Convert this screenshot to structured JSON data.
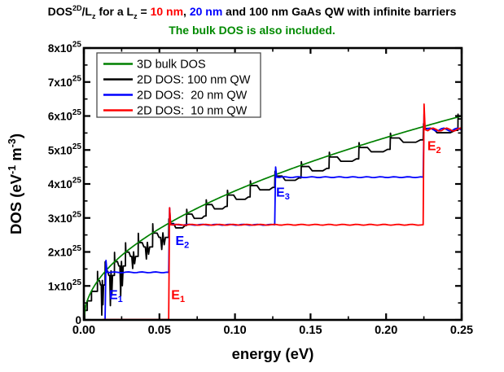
{
  "title": {
    "segments": [
      {
        "text": "DOS"
      },
      {
        "text": "2D",
        "style": "sup"
      },
      {
        "text": "/L"
      },
      {
        "text": "z",
        "style": "sub"
      },
      {
        "text": " for a L"
      },
      {
        "text": "z",
        "style": "sub"
      },
      {
        "text": " = "
      },
      {
        "text": "10 nm",
        "color": "#ff0000"
      },
      {
        "text": ", "
      },
      {
        "text": "20 nm",
        "color": "#0000ff"
      },
      {
        "text": " and 100 nm GaAs QW with infinite barriers"
      }
    ]
  },
  "subtitle": {
    "text": "The bulk DOS is also included.",
    "color": "#008a00"
  },
  "chart_data": {
    "type": "line",
    "xlabel": "energy (eV)",
    "ylabel_segments": [
      {
        "t": "DOS (eV"
      },
      {
        "t": "-1",
        "sup": true
      },
      {
        "t": " m"
      },
      {
        "t": "-3",
        "sup": true
      },
      {
        "t": ")"
      }
    ],
    "xlim": [
      0,
      0.25
    ],
    "ylim": [
      0,
      8e+25
    ],
    "grid": false,
    "x_ticks": [
      0,
      0.05,
      0.1,
      0.15,
      0.2,
      0.25
    ],
    "x_tick_labels": [
      "0.00",
      "0.05",
      "0.10",
      "0.15",
      "0.20",
      "0.25"
    ],
    "x_minor_step": 0.025,
    "y_ticks": [
      0,
      1e+25,
      2e+25,
      3e+25,
      4e+25,
      5e+25,
      6e+25,
      7e+25,
      8e+25
    ],
    "y_tick_labels": [
      {
        "m": "0",
        "e": ""
      },
      {
        "m": "1x10",
        "e": "25"
      },
      {
        "m": "2x10",
        "e": "25"
      },
      {
        "m": "3x10",
        "e": "25"
      },
      {
        "m": "4x10",
        "e": "25"
      },
      {
        "m": "5x10",
        "e": "25"
      },
      {
        "m": "6x10",
        "e": "25"
      },
      {
        "m": "7x10",
        "e": "25"
      },
      {
        "m": "8x10",
        "e": "25"
      }
    ],
    "legend": {
      "position": "top-left",
      "entries": [
        {
          "label": "3D bulk DOS",
          "color": "#008000"
        },
        {
          "label": "2D DOS: 100 nm QW",
          "color": "#000000"
        },
        {
          "label": "2D DOS:  20 nm QW",
          "color": "#0000ff"
        },
        {
          "label": "2D DOS:  10 nm QW",
          "color": "#ff0000"
        }
      ]
    },
    "series": [
      {
        "name": "3D bulk DOS",
        "color": "#008000",
        "type": "bulk_sqrt",
        "formula": "DOS(E) = c * sqrt(E)",
        "coefficient": 1.2e+26,
        "value_at_xmax": 6e+25
      },
      {
        "name": "2D DOS: 100 nm QW",
        "color": "#000000",
        "type": "staircase",
        "style": "noisy",
        "well_width_nm": 100,
        "step_height": 2.8e+24,
        "subband_energies_ev": [
          0.000561,
          0.002245,
          0.005051,
          0.00898,
          0.014031,
          0.020205,
          0.027502,
          0.035921,
          0.045463,
          0.056128,
          0.067915,
          0.080825,
          0.094857,
          0.110012,
          0.12629,
          0.14369,
          0.162213,
          0.181859,
          0.202627,
          0.224518,
          0.247531
        ]
      },
      {
        "name": "2D DOS:  20 nm QW",
        "color": "#0000ff",
        "type": "staircase",
        "style": "clean",
        "well_width_nm": 20,
        "step_height": 1.4e+25,
        "subband_energies_ev": [
          0.014031,
          0.056128,
          0.12629,
          0.224518
        ],
        "overshoots": [
          3.5e+24,
          5e+24,
          3e+24,
          4.5e+24
        ],
        "plateau_values": [
          1.4e+25,
          2.8e+25,
          4.2e+25,
          5.6e+25
        ]
      },
      {
        "name": "2D DOS:  10 nm QW",
        "color": "#ff0000",
        "type": "staircase",
        "style": "clean",
        "well_width_nm": 10,
        "step_height": 2.8e+25,
        "subband_energies_ev": [
          0.056128,
          0.224518
        ],
        "overshoots": [
          5e+24,
          7.5e+24
        ],
        "plateau_values": [
          2.8e+25,
          5.6e+25
        ],
        "zero_line_start_ev": 0.0125
      }
    ],
    "annotations": [
      {
        "text": "E",
        "sub": "1",
        "color": "#0000ff",
        "x_ev": 0.0167,
        "y": 9.2e+24
      },
      {
        "text": "E",
        "sub": "1",
        "color": "#ff0000",
        "x_ev": 0.0578,
        "y": 9.2e+24
      },
      {
        "text": "E",
        "sub": "2",
        "color": "#0000ff",
        "x_ev": 0.0606,
        "y": 2.52e+25
      },
      {
        "text": "E",
        "sub": "3",
        "color": "#0000ff",
        "x_ev": 0.1272,
        "y": 3.94e+25
      },
      {
        "text": "E",
        "sub": "2",
        "color": "#ff0000",
        "x_ev": 0.2273,
        "y": 5.3e+25
      }
    ]
  }
}
